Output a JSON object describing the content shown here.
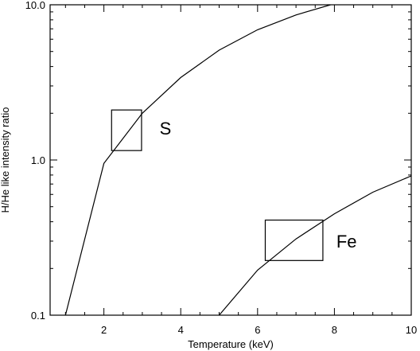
{
  "chart_data": {
    "type": "line",
    "title": "",
    "xlabel": "Temperature (keV)",
    "ylabel": "H/He like intensity ratio",
    "xlim": [
      0.6,
      10
    ],
    "ylim": [
      0.1,
      10
    ],
    "yscale": "log",
    "grid": false,
    "x_ticks": [
      2,
      4,
      6,
      8,
      10
    ],
    "x_tick_labels": [
      "2",
      "4",
      "6",
      "8",
      "10"
    ],
    "y_ticks": [
      0.1,
      1.0,
      10.0
    ],
    "y_tick_labels": [
      "0.1",
      "1.0",
      "10.0"
    ],
    "series": [
      {
        "x": [
          1.0,
          2.0,
          3.0,
          4.0,
          5.0,
          6.0,
          7.0,
          7.9
        ],
        "y": [
          0.1,
          0.95,
          2.0,
          3.4,
          5.1,
          6.9,
          8.6,
          10.0
        ]
      },
      {
        "x": [
          5.0,
          6.0,
          7.0,
          8.0,
          9.0,
          10.0
        ],
        "y": [
          0.1,
          0.195,
          0.31,
          0.45,
          0.62,
          0.79
        ]
      }
    ],
    "annotations": [
      {
        "text": "S",
        "box_x": [
          2.2,
          2.98
        ],
        "box_y": [
          1.15,
          2.1
        ],
        "text_x": 3.45,
        "text_y": 1.6
      },
      {
        "text": "Fe",
        "box_x": [
          6.2,
          7.7
        ],
        "box_y": [
          0.225,
          0.41
        ],
        "text_x": 8.05,
        "text_y": 0.3
      }
    ]
  }
}
